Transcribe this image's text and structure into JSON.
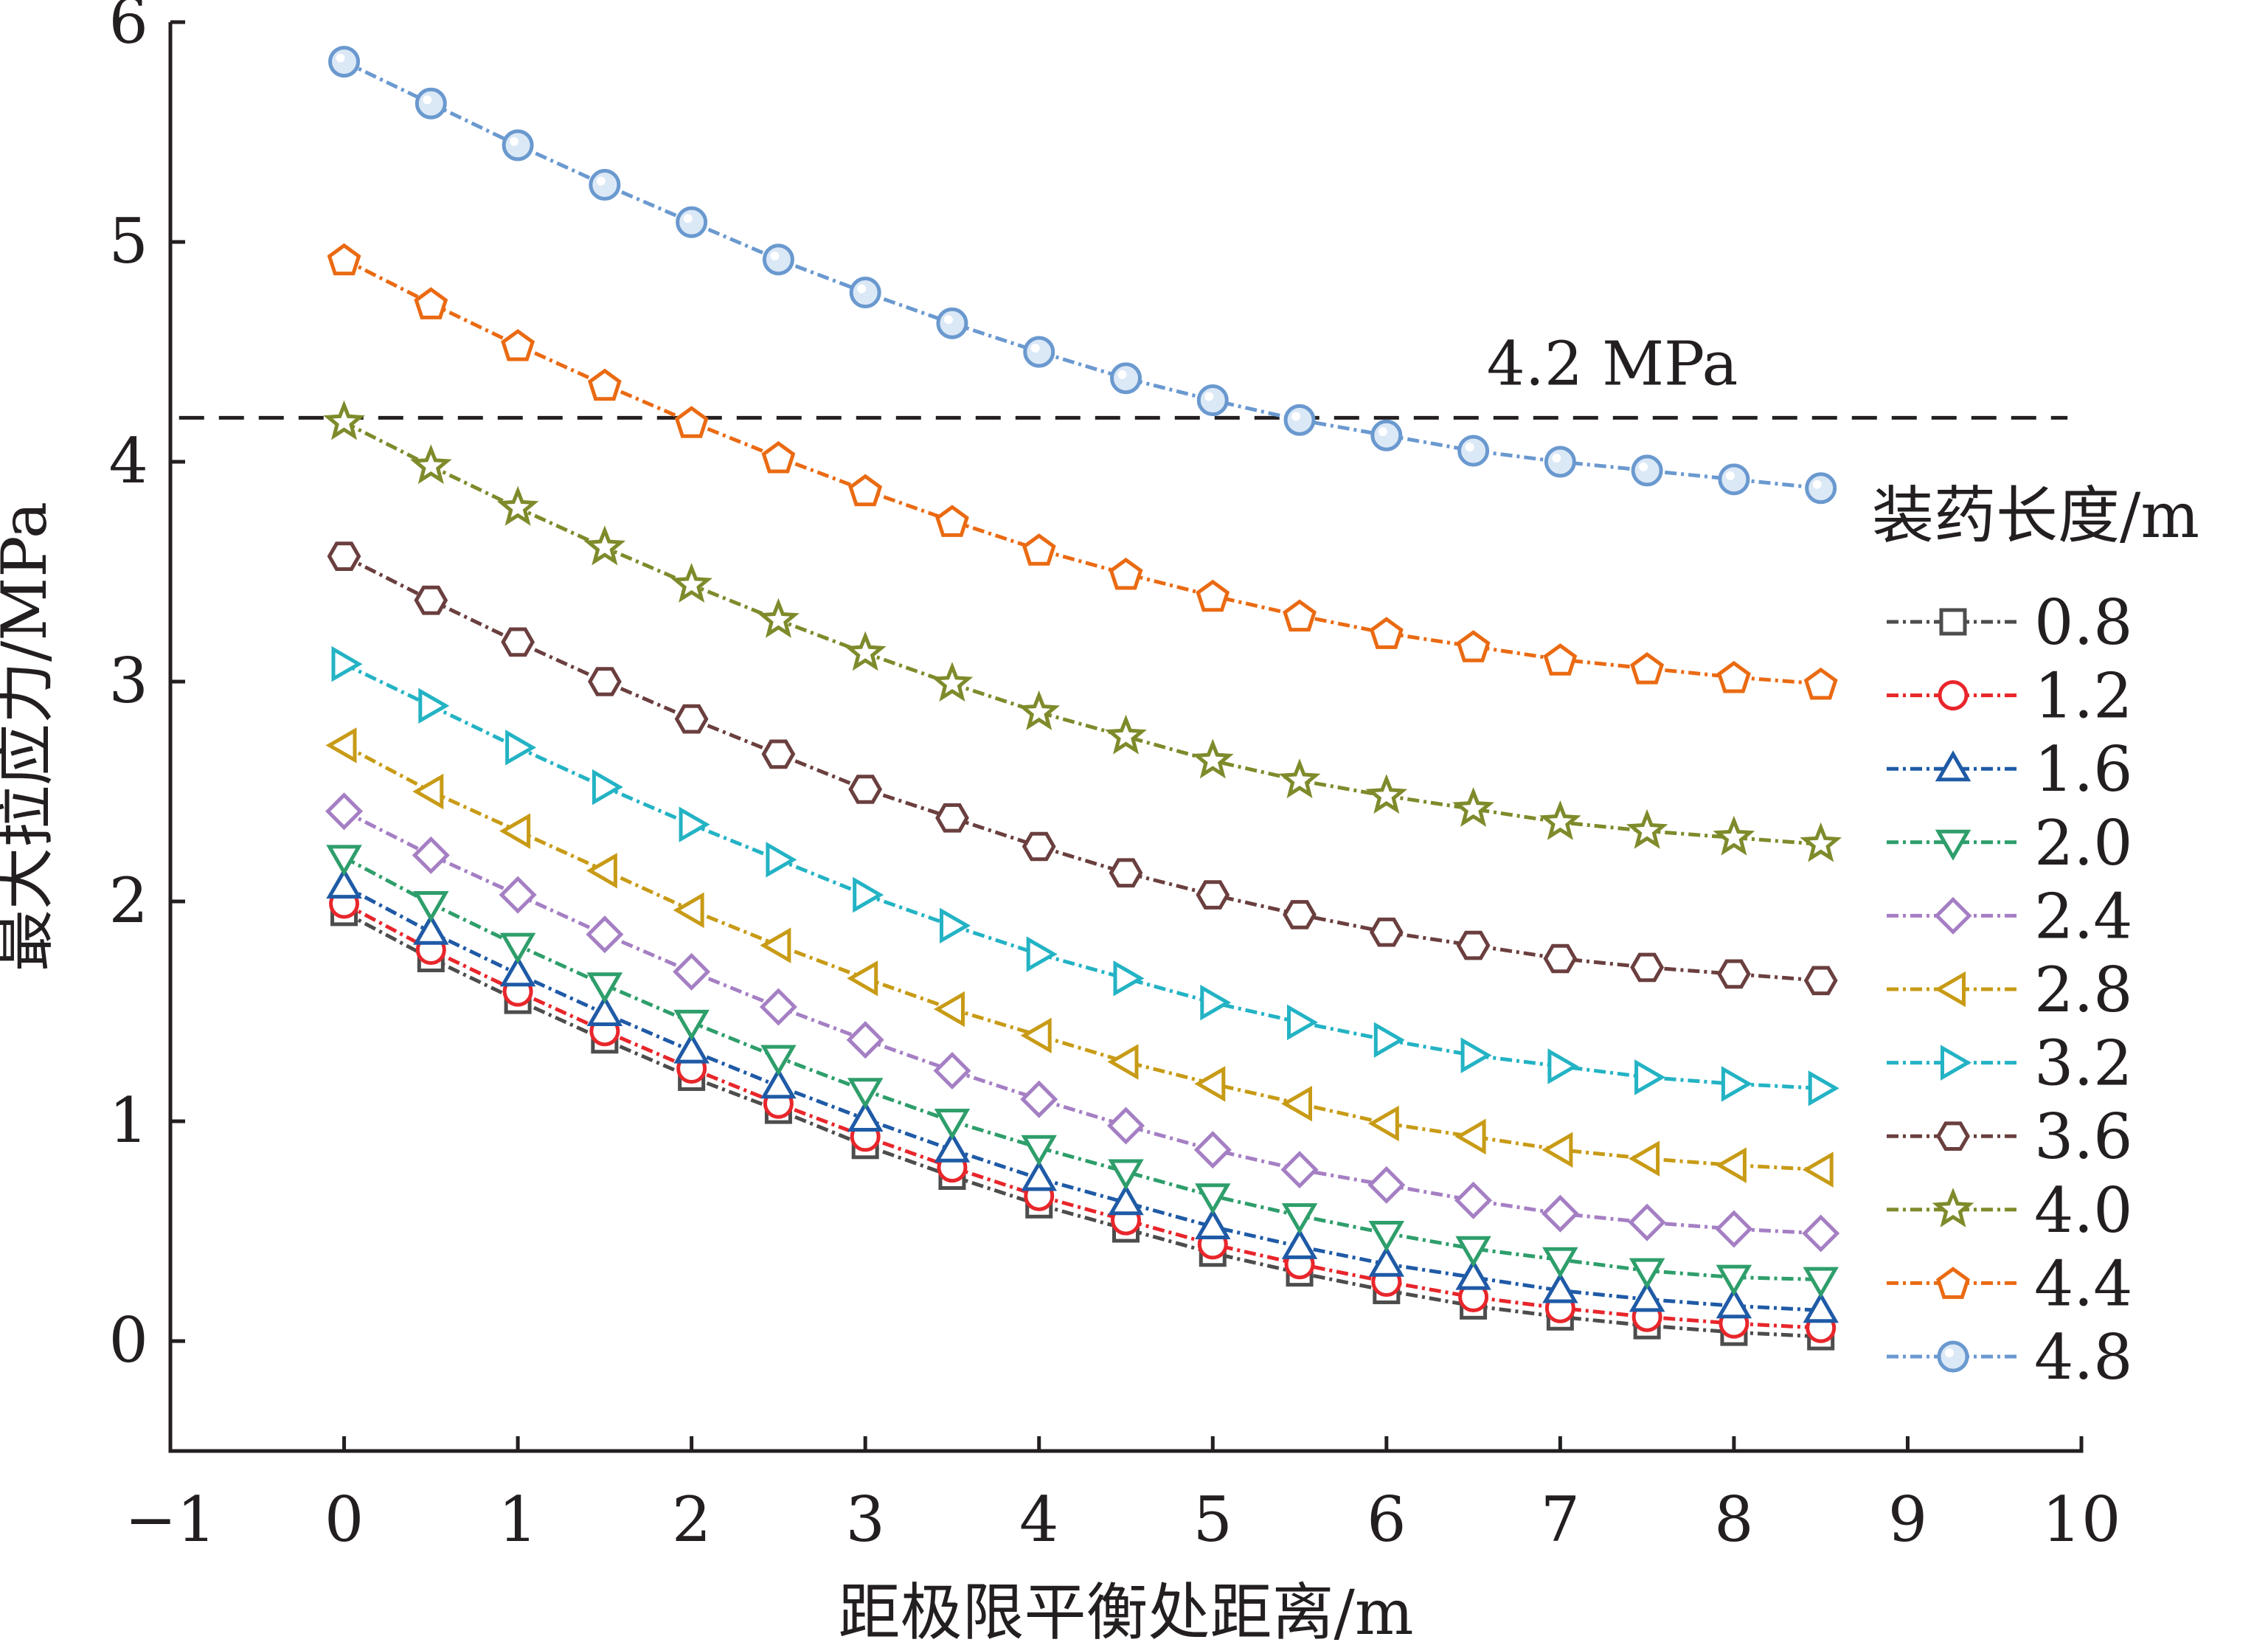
{
  "chart_data": {
    "type": "line",
    "title": "",
    "xlabel": "距极限平衡处距离/m",
    "ylabel": "最大拉应力/MPa",
    "xlim": [
      -1,
      10
    ],
    "ylim": [
      -0.5,
      6
    ],
    "xticks": [
      -1,
      0,
      1,
      2,
      3,
      4,
      5,
      6,
      7,
      8,
      9,
      10
    ],
    "xtick_labels": [
      "−1",
      "0",
      "1",
      "2",
      "3",
      "4",
      "5",
      "6",
      "7",
      "8",
      "9",
      "10"
    ],
    "yticks": [
      0,
      1,
      2,
      3,
      4,
      5,
      6
    ],
    "ytick_labels": [
      "0",
      "1",
      "2",
      "3",
      "4",
      "5",
      "6"
    ],
    "grid": false,
    "legend_title": "装药长度/m",
    "legend_position": "right",
    "reference_line": {
      "y": 4.2,
      "label": "4.2 MPa",
      "style": "dashed",
      "color": "#231f20"
    },
    "x": [
      0,
      0.5,
      1,
      1.5,
      2,
      2.5,
      3,
      3.5,
      4,
      4.5,
      5,
      5.5,
      6,
      6.5,
      7,
      7.5,
      8,
      8.5
    ],
    "series": [
      {
        "name": "0.8",
        "marker": "square",
        "color": "#4d4d4d",
        "values": [
          1.95,
          1.74,
          1.55,
          1.37,
          1.2,
          1.05,
          0.89,
          0.75,
          0.62,
          0.51,
          0.4,
          0.31,
          0.23,
          0.16,
          0.11,
          0.07,
          0.04,
          0.02
        ]
      },
      {
        "name": "1.2",
        "marker": "circle",
        "color": "#e8262b",
        "values": [
          1.99,
          1.78,
          1.59,
          1.41,
          1.24,
          1.08,
          0.93,
          0.79,
          0.66,
          0.55,
          0.44,
          0.35,
          0.27,
          0.2,
          0.15,
          0.11,
          0.08,
          0.06
        ]
      },
      {
        "name": "1.6",
        "marker": "triangle-up",
        "color": "#1f5aa6",
        "values": [
          2.07,
          1.86,
          1.67,
          1.49,
          1.32,
          1.16,
          1.01,
          0.87,
          0.74,
          0.63,
          0.52,
          0.43,
          0.35,
          0.29,
          0.23,
          0.19,
          0.16,
          0.14
        ]
      },
      {
        "name": "2.0",
        "marker": "triangle-down",
        "color": "#2e9e6b",
        "values": [
          2.2,
          1.99,
          1.8,
          1.62,
          1.45,
          1.29,
          1.14,
          1.0,
          0.88,
          0.77,
          0.66,
          0.57,
          0.49,
          0.42,
          0.37,
          0.32,
          0.29,
          0.28
        ]
      },
      {
        "name": "2.4",
        "marker": "diamond",
        "color": "#a57fc4",
        "values": [
          2.41,
          2.21,
          2.03,
          1.85,
          1.68,
          1.52,
          1.37,
          1.23,
          1.1,
          0.98,
          0.87,
          0.78,
          0.71,
          0.64,
          0.58,
          0.54,
          0.51,
          0.49
        ]
      },
      {
        "name": "2.8",
        "marker": "triangle-left",
        "color": "#c89b16",
        "values": [
          2.71,
          2.5,
          2.32,
          2.14,
          1.96,
          1.8,
          1.65,
          1.51,
          1.39,
          1.27,
          1.17,
          1.08,
          0.99,
          0.93,
          0.87,
          0.83,
          0.8,
          0.78
        ]
      },
      {
        "name": "3.2",
        "marker": "triangle-right",
        "color": "#23b3c4",
        "values": [
          3.08,
          2.89,
          2.7,
          2.52,
          2.35,
          2.19,
          2.03,
          1.89,
          1.76,
          1.65,
          1.54,
          1.45,
          1.37,
          1.3,
          1.25,
          1.2,
          1.17,
          1.15
        ]
      },
      {
        "name": "3.6",
        "marker": "hexagon",
        "color": "#6b3f3f",
        "values": [
          3.57,
          3.37,
          3.18,
          3.0,
          2.83,
          2.67,
          2.51,
          2.38,
          2.25,
          2.13,
          2.03,
          1.94,
          1.86,
          1.8,
          1.74,
          1.7,
          1.67,
          1.64
        ]
      },
      {
        "name": "4.0",
        "marker": "star",
        "color": "#7f8a2b",
        "values": [
          4.18,
          3.98,
          3.79,
          3.61,
          3.44,
          3.28,
          3.13,
          2.99,
          2.86,
          2.75,
          2.64,
          2.55,
          2.48,
          2.42,
          2.36,
          2.32,
          2.29,
          2.26
        ]
      },
      {
        "name": "4.4",
        "marker": "pentagon",
        "color": "#ea6a12",
        "values": [
          4.92,
          4.72,
          4.53,
          4.35,
          4.18,
          4.02,
          3.87,
          3.73,
          3.6,
          3.49,
          3.39,
          3.3,
          3.22,
          3.16,
          3.1,
          3.06,
          3.02,
          2.99
        ]
      },
      {
        "name": "4.8",
        "marker": "circle-shaded",
        "color": "#6a99cf",
        "values": [
          5.82,
          5.63,
          5.44,
          5.26,
          5.09,
          4.92,
          4.77,
          4.63,
          4.5,
          4.38,
          4.28,
          4.19,
          4.12,
          4.05,
          4.0,
          3.96,
          3.92,
          3.88
        ]
      }
    ]
  }
}
